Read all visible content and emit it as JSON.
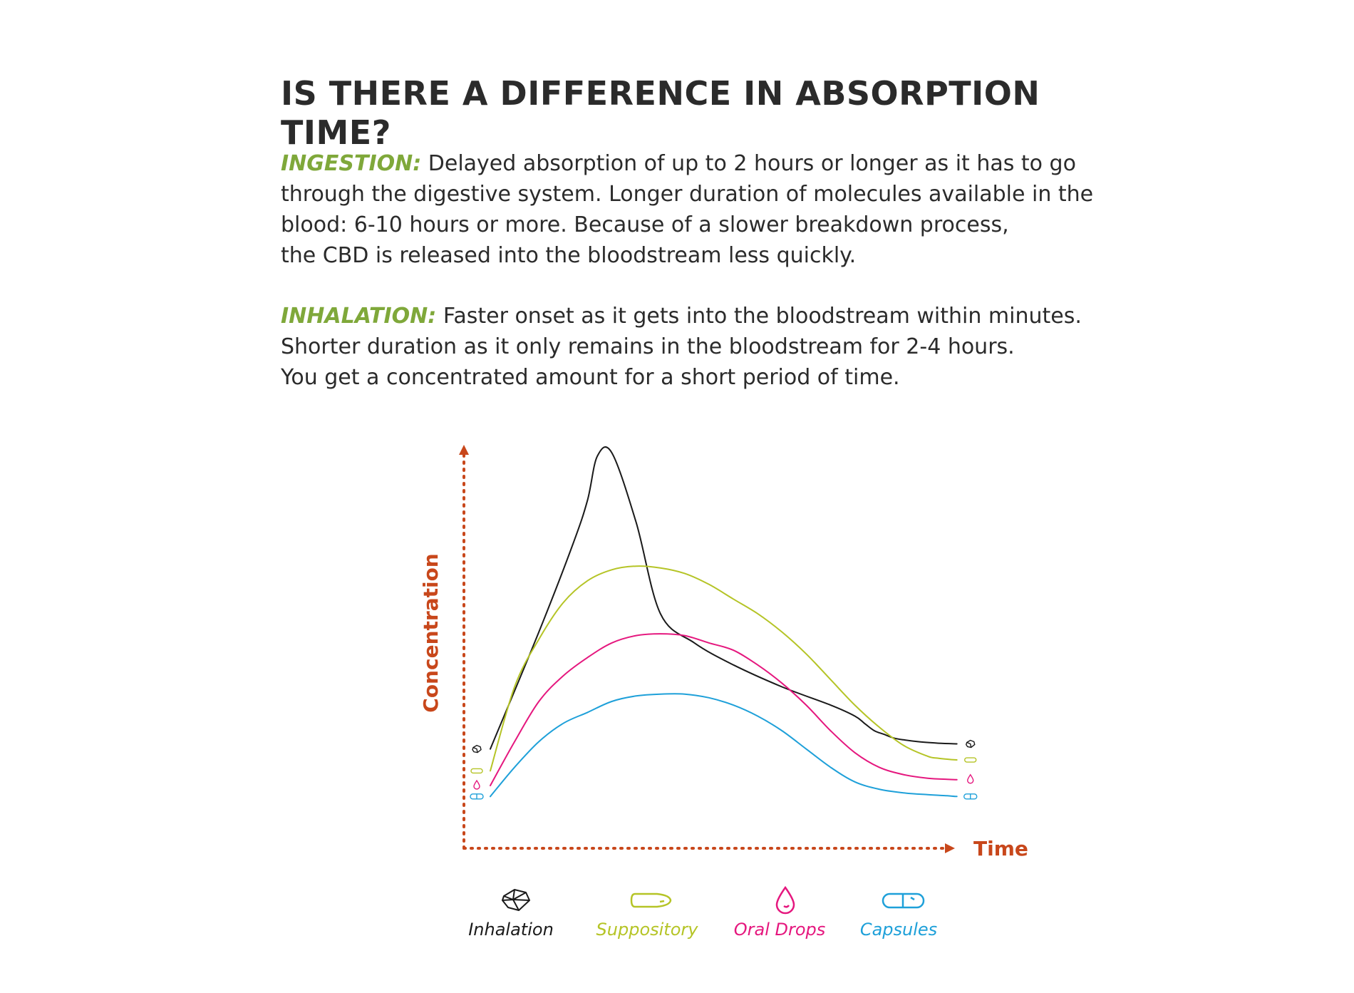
{
  "title": "IS THERE A DIFFERENCE IN ABSORPTION TIME?",
  "ingestion": {
    "label": "INGESTION:",
    "line1": "Delayed absorption of up to 2 hours or longer as it has to go",
    "line2": "through the digestive system. Longer duration of molecules available in the",
    "line3": "blood: 6-10 hours or more. Because of a slower breakdown process,",
    "line4": "the CBD is released into the bloodstream less quickly."
  },
  "inhalation": {
    "label": "INHALATION:",
    "line1": "Faster onset as it gets into the bloodstream within minutes.",
    "line2": "Shorter duration as it only remains in the bloodstream for 2-4 hours.",
    "line3": "You get a concentrated amount for a short period of time."
  },
  "colors": {
    "axis": "#c8471b",
    "lead": "#7fa83a",
    "text": "#2b2b2b"
  },
  "chart_data": {
    "type": "line",
    "xlabel": "Time",
    "ylabel": "Concentration",
    "xlim": [
      0,
      100
    ],
    "ylim": [
      0,
      100
    ],
    "grid": false,
    "legend_position": "bottom",
    "axis_ticks": false,
    "series": [
      {
        "name": "Inhalation",
        "color": "#1a1a1a",
        "icon": "crystal-icon",
        "x": [
          0,
          10,
          17,
          20,
          22,
          25,
          30,
          35,
          42,
          50,
          60,
          70,
          75,
          77,
          79,
          81,
          83,
          85,
          88,
          92,
          96
        ],
        "y": [
          18,
          50,
          74,
          86,
          98,
          99,
          80,
          55,
          47,
          41,
          35,
          30,
          27,
          25,
          23,
          22,
          21,
          20.5,
          20,
          19.6,
          19.4
        ]
      },
      {
        "name": "Suppository",
        "color": "#b5c426",
        "icon": "suppository-icon",
        "x": [
          0,
          5,
          10,
          15,
          20,
          25,
          30,
          35,
          40,
          45,
          50,
          55,
          60,
          65,
          70,
          75,
          80,
          85,
          90,
          92,
          94,
          96
        ],
        "y": [
          12,
          35,
          48,
          58,
          64,
          67,
          68,
          67.5,
          66,
          63,
          59,
          55,
          50,
          44,
          37,
          30,
          24,
          19,
          16,
          15.5,
          15.2,
          15
        ]
      },
      {
        "name": "Oral Drops",
        "color": "#e5177e",
        "icon": "drop-icon",
        "x": [
          0,
          5,
          10,
          15,
          20,
          25,
          30,
          35,
          40,
          45,
          50,
          55,
          60,
          65,
          70,
          75,
          80,
          85,
          90,
          94,
          96
        ],
        "y": [
          8,
          20,
          31,
          38,
          43,
          47,
          49,
          49.5,
          49,
          47,
          45,
          41,
          36,
          30,
          23,
          17,
          13,
          11,
          10,
          9.7,
          9.6
        ]
      },
      {
        "name": "Capsules",
        "color": "#1ea0d9",
        "icon": "capsule-icon",
        "x": [
          0,
          5,
          10,
          15,
          20,
          25,
          30,
          35,
          40,
          45,
          50,
          55,
          60,
          65,
          70,
          75,
          80,
          85,
          90,
          94,
          96
        ],
        "y": [
          5,
          13,
          20,
          25,
          28,
          31,
          32.5,
          33,
          33,
          32,
          30,
          27,
          23,
          18,
          13,
          9,
          7,
          6,
          5.5,
          5.2,
          5
        ]
      }
    ]
  }
}
